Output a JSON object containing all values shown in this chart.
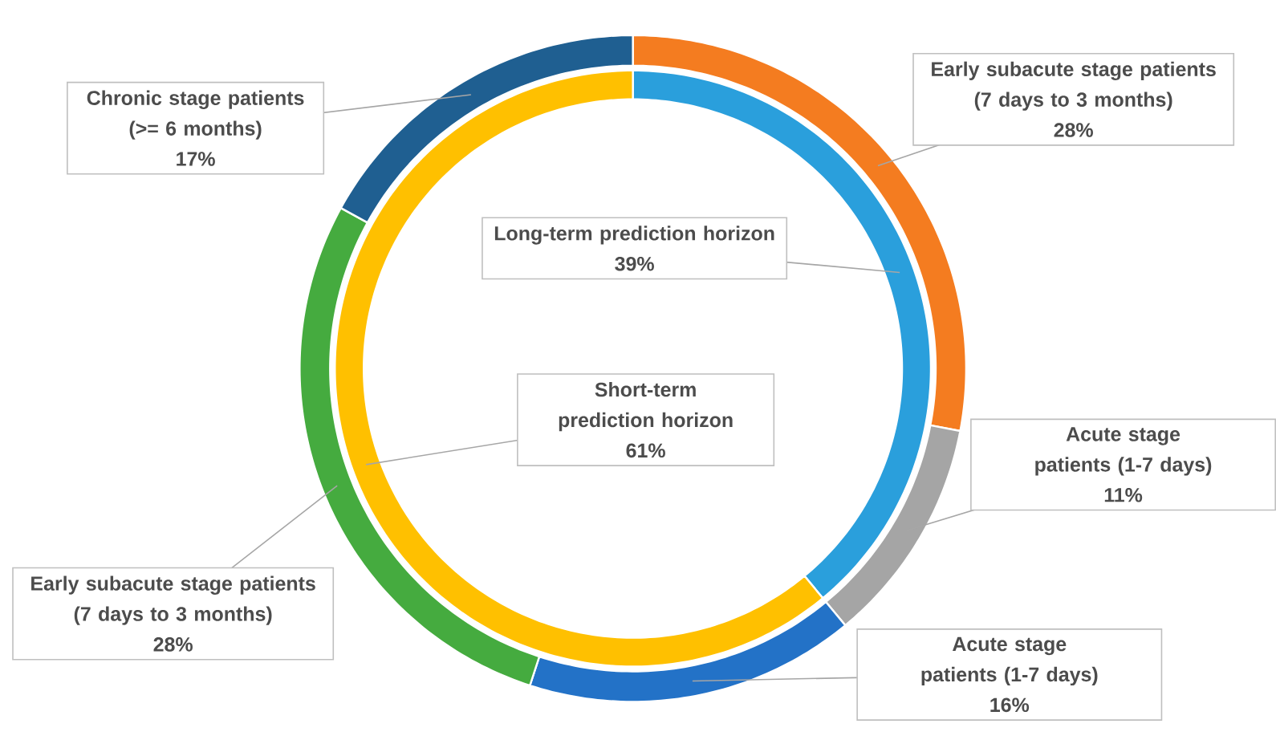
{
  "chart_data": [
    {
      "type": "donut",
      "categories": [
        "Long-term prediction horizon",
        "Short-term prediction horizon"
      ],
      "values": [
        39,
        61
      ],
      "colors": [
        "#2a9fdc",
        "#ffc000"
      ],
      "value_labels": [
        "39%",
        "61%"
      ]
    },
    {
      "type": "donut",
      "categories": [
        "Early subacute stage patients (7 days to 3 months)",
        "Acute stage patients (1-7 days)",
        "Acute stage patients (1-7 days)",
        "Early subacute stage patients (7 days to 3 months)",
        "Chronic stage patients (>= 6 months)"
      ],
      "values": [
        28,
        11,
        16,
        28,
        17
      ],
      "colors": [
        "#f47c20",
        "#a5a5a5",
        "#2372c7",
        "#45ab3f",
        "#1f5f91"
      ],
      "value_labels": [
        "28%",
        "11%",
        "16%",
        "28%",
        "17%"
      ]
    }
  ]
}
